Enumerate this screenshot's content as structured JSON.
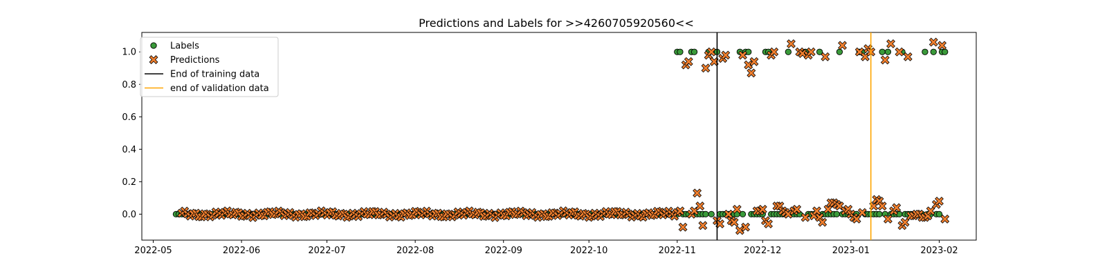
{
  "chart_data": {
    "type": "scatter",
    "title": "Predictions and Labels for >>4260705920560<<",
    "xlabel": "",
    "ylabel": "",
    "x_axis": {
      "type": "date",
      "range": [
        "2022-04-27",
        "2023-02-14"
      ],
      "ticks": [
        "2022-05-01",
        "2022-06-01",
        "2022-07-01",
        "2022-08-01",
        "2022-09-01",
        "2022-10-01",
        "2022-11-01",
        "2022-12-01",
        "2023-01-01",
        "2023-02-01"
      ],
      "tick_labels": [
        "2022-05",
        "2022-06",
        "2022-07",
        "2022-08",
        "2022-09",
        "2022-10",
        "2022-11",
        "2022-12",
        "2023-01",
        "2023-02"
      ]
    },
    "y_axis": {
      "range": [
        -0.16,
        1.12
      ],
      "ticks": [
        0.0,
        0.2,
        0.4,
        0.6,
        0.8,
        1.0
      ],
      "tick_labels": [
        "0.0",
        "0.2",
        "0.4",
        "0.6",
        "0.8",
        "1.0"
      ]
    },
    "grid": false,
    "legend": {
      "placement": "top-left",
      "entries": [
        {
          "label": "Labels",
          "kind": "circle",
          "color": "#3a9a3a"
        },
        {
          "label": "Predictions",
          "kind": "x",
          "color": "#f07f2e"
        },
        {
          "label": "End of training data",
          "kind": "line",
          "color": "#000000"
        },
        {
          "label": "end of validation data",
          "kind": "line",
          "color": "#ffa500"
        }
      ]
    },
    "vlines": [
      {
        "name": "End of training data",
        "x": "2022-11-15",
        "color": "#000000"
      },
      {
        "name": "end of validation data",
        "x": "2023-01-08",
        "color": "#ffa500"
      }
    ],
    "series": [
      {
        "name": "Labels",
        "marker": "circle",
        "color": "#3a9a3a",
        "dense_zero_range": [
          "2022-05-09",
          "2022-11-01"
        ],
        "points": [
          [
            "2022-11-01",
            1
          ],
          [
            "2022-11-02",
            1
          ],
          [
            "2022-11-03",
            0
          ],
          [
            "2022-11-04",
            0
          ],
          [
            "2022-11-05",
            0
          ],
          [
            "2022-11-06",
            1
          ],
          [
            "2022-11-07",
            1
          ],
          [
            "2022-11-08",
            0
          ],
          [
            "2022-11-09",
            0
          ],
          [
            "2022-11-10",
            0
          ],
          [
            "2022-11-11",
            0
          ],
          [
            "2022-11-12",
            1
          ],
          [
            "2022-11-13",
            0
          ],
          [
            "2022-11-14",
            1
          ],
          [
            "2022-11-15",
            1
          ],
          [
            "2022-11-16",
            0
          ],
          [
            "2022-11-17",
            0
          ],
          [
            "2022-11-18",
            0
          ],
          [
            "2022-11-19",
            0
          ],
          [
            "2022-11-20",
            0
          ],
          [
            "2022-11-21",
            0
          ],
          [
            "2022-11-22",
            0
          ],
          [
            "2022-11-23",
            1
          ],
          [
            "2022-11-24",
            0
          ],
          [
            "2022-11-25",
            1
          ],
          [
            "2022-11-26",
            1
          ],
          [
            "2022-11-27",
            0
          ],
          [
            "2022-11-28",
            0
          ],
          [
            "2022-11-29",
            0
          ],
          [
            "2022-11-30",
            0
          ],
          [
            "2022-12-01",
            0
          ],
          [
            "2022-12-02",
            1
          ],
          [
            "2022-12-03",
            1
          ],
          [
            "2022-12-04",
            0
          ],
          [
            "2022-12-05",
            0
          ],
          [
            "2022-12-06",
            0
          ],
          [
            "2022-12-07",
            0
          ],
          [
            "2022-12-08",
            0
          ],
          [
            "2022-12-09",
            0
          ],
          [
            "2022-12-10",
            1
          ],
          [
            "2022-12-11",
            0
          ],
          [
            "2022-12-12",
            0
          ],
          [
            "2022-12-13",
            0
          ],
          [
            "2022-12-14",
            0
          ],
          [
            "2022-12-15",
            1
          ],
          [
            "2022-12-16",
            1
          ],
          [
            "2022-12-17",
            0
          ],
          [
            "2022-12-18",
            0
          ],
          [
            "2022-12-19",
            0
          ],
          [
            "2022-12-20",
            0
          ],
          [
            "2022-12-21",
            1
          ],
          [
            "2022-12-22",
            0
          ],
          [
            "2022-12-23",
            0
          ],
          [
            "2022-12-24",
            0
          ],
          [
            "2022-12-25",
            0
          ],
          [
            "2022-12-26",
            0
          ],
          [
            "2022-12-27",
            0
          ],
          [
            "2022-12-28",
            1
          ],
          [
            "2022-12-29",
            0
          ],
          [
            "2022-12-30",
            0
          ],
          [
            "2022-12-31",
            0
          ],
          [
            "2023-01-01",
            0
          ],
          [
            "2023-01-02",
            0
          ],
          [
            "2023-01-03",
            0
          ],
          [
            "2023-01-04",
            1
          ],
          [
            "2023-01-05",
            1
          ],
          [
            "2023-01-06",
            0
          ],
          [
            "2023-01-07",
            0
          ],
          [
            "2023-01-08",
            0
          ],
          [
            "2023-01-09",
            0
          ],
          [
            "2023-01-10",
            0
          ],
          [
            "2023-01-11",
            0
          ],
          [
            "2023-01-12",
            1
          ],
          [
            "2023-01-13",
            0
          ],
          [
            "2023-01-14",
            1
          ],
          [
            "2023-01-15",
            0
          ],
          [
            "2023-01-16",
            0
          ],
          [
            "2023-01-17",
            0
          ],
          [
            "2023-01-18",
            0
          ],
          [
            "2023-01-19",
            1
          ],
          [
            "2023-01-20",
            0
          ],
          [
            "2023-01-21",
            0
          ],
          [
            "2023-01-22",
            0
          ],
          [
            "2023-01-23",
            0
          ],
          [
            "2023-01-24",
            0
          ],
          [
            "2023-01-25",
            0
          ],
          [
            "2023-01-26",
            0
          ],
          [
            "2023-01-27",
            1
          ],
          [
            "2023-01-28",
            0
          ],
          [
            "2023-01-29",
            0
          ],
          [
            "2023-01-30",
            1
          ],
          [
            "2023-01-31",
            0
          ],
          [
            "2023-02-01",
            0
          ],
          [
            "2023-02-02",
            1
          ],
          [
            "2023-02-03",
            1
          ]
        ]
      },
      {
        "name": "Predictions",
        "marker": "x",
        "color": "#f07f2e",
        "dense_zero_range": [
          "2022-05-11",
          "2022-10-31"
        ],
        "points": [
          [
            "2022-11-01",
            0.01
          ],
          [
            "2022-11-02",
            0.02
          ],
          [
            "2022-11-03",
            -0.08
          ],
          [
            "2022-11-04",
            0.92
          ],
          [
            "2022-11-05",
            0.94
          ],
          [
            "2022-11-06",
            0.0
          ],
          [
            "2022-11-07",
            0.02
          ],
          [
            "2022-11-08",
            0.13
          ],
          [
            "2022-11-09",
            0.05
          ],
          [
            "2022-11-10",
            -0.07
          ],
          [
            "2022-11-11",
            0.9
          ],
          [
            "2022-11-12",
            0.98
          ],
          [
            "2022-11-13",
            1.0
          ],
          [
            "2022-11-14",
            0.94
          ],
          [
            "2022-11-15",
            -0.04
          ],
          [
            "2022-11-16",
            -0.06
          ],
          [
            "2022-11-17",
            0.96
          ],
          [
            "2022-11-18",
            0.98
          ],
          [
            "2022-11-19",
            0.0
          ],
          [
            "2022-11-20",
            -0.04
          ],
          [
            "2022-11-21",
            -0.05
          ],
          [
            "2022-11-22",
            0.03
          ],
          [
            "2022-11-23",
            -0.1
          ],
          [
            "2022-11-24",
            0.98
          ],
          [
            "2022-11-25",
            -0.08
          ],
          [
            "2022-11-26",
            0.92
          ],
          [
            "2022-11-27",
            0.87
          ],
          [
            "2022-11-28",
            0.94
          ],
          [
            "2022-11-29",
            0.02
          ],
          [
            "2022-11-30",
            0.02
          ],
          [
            "2022-12-01",
            0.03
          ],
          [
            "2022-12-02",
            -0.04
          ],
          [
            "2022-12-03",
            -0.06
          ],
          [
            "2022-12-04",
            0.98
          ],
          [
            "2022-12-05",
            1.0
          ],
          [
            "2022-12-06",
            0.05
          ],
          [
            "2022-12-07",
            0.05
          ],
          [
            "2022-12-08",
            0.02
          ],
          [
            "2022-12-09",
            0.01
          ],
          [
            "2022-12-10",
            0.0
          ],
          [
            "2022-12-11",
            1.05
          ],
          [
            "2022-12-12",
            0.02
          ],
          [
            "2022-12-13",
            0.03
          ],
          [
            "2022-12-14",
            1.0
          ],
          [
            "2022-12-15",
            0.99
          ],
          [
            "2022-12-16",
            -0.02
          ],
          [
            "2022-12-17",
            0.98
          ],
          [
            "2022-12-18",
            1.0
          ],
          [
            "2022-12-19",
            -0.01
          ],
          [
            "2022-12-20",
            0.02
          ],
          [
            "2022-12-21",
            -0.02
          ],
          [
            "2022-12-22",
            -0.05
          ],
          [
            "2022-12-23",
            0.97
          ],
          [
            "2022-12-24",
            0.03
          ],
          [
            "2022-12-25",
            0.07
          ],
          [
            "2022-12-26",
            0.07
          ],
          [
            "2022-12-27",
            0.06
          ],
          [
            "2022-12-28",
            0.05
          ],
          [
            "2022-12-29",
            1.04
          ],
          [
            "2022-12-30",
            0.02
          ],
          [
            "2022-12-31",
            0.03
          ],
          [
            "2023-01-01",
            0.0
          ],
          [
            "2023-01-02",
            -0.02
          ],
          [
            "2023-01-03",
            -0.03
          ],
          [
            "2023-01-04",
            1.0
          ],
          [
            "2023-01-05",
            0.01
          ],
          [
            "2023-01-06",
            0.97
          ],
          [
            "2023-01-07",
            1.02
          ],
          [
            "2023-01-08",
            1.0
          ],
          [
            "2023-01-09",
            0.05
          ],
          [
            "2023-01-10",
            0.09
          ],
          [
            "2023-01-11",
            0.08
          ],
          [
            "2023-01-12",
            0.05
          ],
          [
            "2023-01-13",
            0.95
          ],
          [
            "2023-01-14",
            -0.03
          ],
          [
            "2023-01-15",
            1.05
          ],
          [
            "2023-01-16",
            0.02
          ],
          [
            "2023-01-17",
            0.04
          ],
          [
            "2023-01-18",
            1.0
          ],
          [
            "2023-01-19",
            -0.07
          ],
          [
            "2023-01-20",
            -0.05
          ],
          [
            "2023-01-21",
            0.97
          ],
          [
            "2023-01-22",
            -0.01
          ],
          [
            "2023-01-23",
            -0.01
          ],
          [
            "2023-01-24",
            0.0
          ],
          [
            "2023-01-25",
            0.0
          ],
          [
            "2023-01-26",
            -0.02
          ],
          [
            "2023-01-27",
            -0.02
          ],
          [
            "2023-01-28",
            -0.01
          ],
          [
            "2023-01-29",
            0.02
          ],
          [
            "2023-01-30",
            1.06
          ],
          [
            "2023-01-31",
            0.06
          ],
          [
            "2023-02-01",
            0.08
          ],
          [
            "2023-02-02",
            1.04
          ],
          [
            "2023-02-03",
            -0.03
          ]
        ]
      }
    ]
  }
}
